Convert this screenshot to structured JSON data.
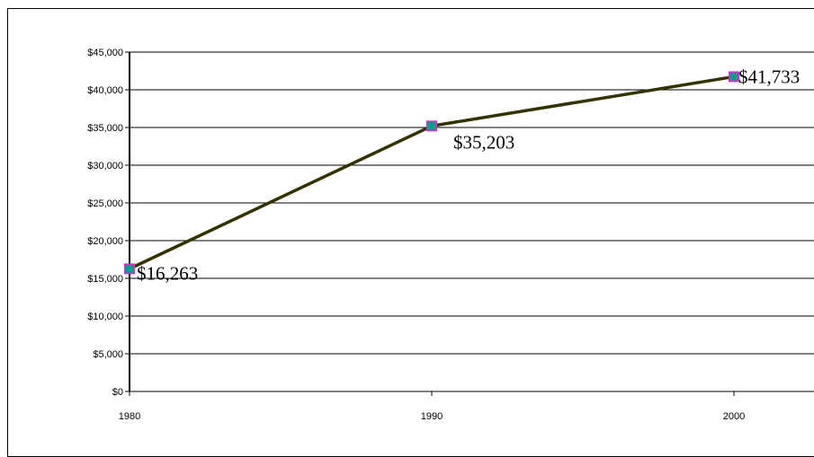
{
  "chart_data": {
    "type": "line",
    "title": "",
    "xlabel": "",
    "ylabel": "",
    "categories": [
      "1980",
      "1990",
      "2000"
    ],
    "series": [
      {
        "values": [
          16263,
          35203,
          41733
        ]
      }
    ],
    "data_labels": [
      "$16,263",
      "$35,203",
      "$41,733"
    ],
    "yticks": [
      "$0",
      "$5,000",
      "$10,000",
      "$15,000",
      "$20,000",
      "$25,000",
      "$30,000",
      "$35,000",
      "$40,000",
      "$45,000"
    ],
    "ylim": [
      0,
      45000
    ],
    "grid": true,
    "legend": "none",
    "colors": {
      "line": "#333300",
      "marker_fill": "#00a08a",
      "marker_edge": "#cc33cc"
    }
  }
}
